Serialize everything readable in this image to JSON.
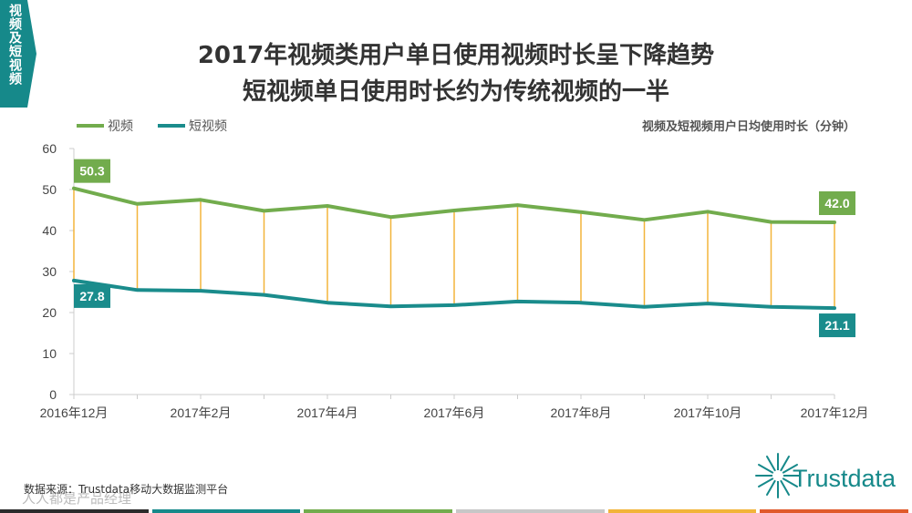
{
  "side_tab": {
    "text": "视频及短视频"
  },
  "title_line1": "2017年视频类用户单日使用视频时长呈下降趋势",
  "title_line2": "短视频单日使用时长约为传统视频的一半",
  "source": "数据来源：Trustdata移动大数据监测平台",
  "watermark": "人人都是产品经理",
  "logo_text": "Trustdata",
  "colors": {
    "video": "#72ac4d",
    "short_video": "#1a8c8c",
    "connector": "#f2b43a",
    "axis": "#cccccc",
    "tab": "#16898a",
    "bottom_bar": [
      "#2b2b2b",
      "#16898a",
      "#72ac4d",
      "#c7c7c7",
      "#f2b43a",
      "#e05a2b"
    ]
  },
  "chart_data": {
    "type": "line",
    "subtitle": "视频及短视频用户日均使用时长（分钟）",
    "x": [
      "2016年12月",
      "2017年1月",
      "2017年2月",
      "2017年3月",
      "2017年4月",
      "2017年5月",
      "2017年6月",
      "2017年7月",
      "2017年8月",
      "2017年9月",
      "2017年10月",
      "2017年11月",
      "2017年12月"
    ],
    "x_tick_labels": [
      "2016年12月",
      "",
      "2017年2月",
      "",
      "2017年4月",
      "",
      "2017年6月",
      "",
      "2017年8月",
      "",
      "2017年10月",
      "",
      "2017年12月"
    ],
    "series": [
      {
        "name": "视频",
        "values": [
          50.3,
          46.5,
          47.5,
          44.8,
          46.0,
          43.3,
          44.9,
          46.2,
          44.5,
          42.6,
          44.6,
          42.1,
          42.0
        ]
      },
      {
        "name": "短视频",
        "values": [
          27.8,
          25.5,
          25.3,
          24.3,
          22.4,
          21.5,
          21.8,
          22.7,
          22.4,
          21.4,
          22.2,
          21.4,
          21.1
        ]
      }
    ],
    "data_labels": [
      {
        "series": 0,
        "index": 0,
        "text": "50.3"
      },
      {
        "series": 0,
        "index": 12,
        "text": "42.0"
      },
      {
        "series": 1,
        "index": 0,
        "text": "27.8"
      },
      {
        "series": 1,
        "index": 12,
        "text": "21.1"
      }
    ],
    "y_ticks": [
      "0",
      "10",
      "20",
      "30",
      "40",
      "50",
      "60"
    ],
    "ylim": [
      0,
      60
    ],
    "legend_position": "top-left",
    "grid": false,
    "drop_lines": true
  }
}
